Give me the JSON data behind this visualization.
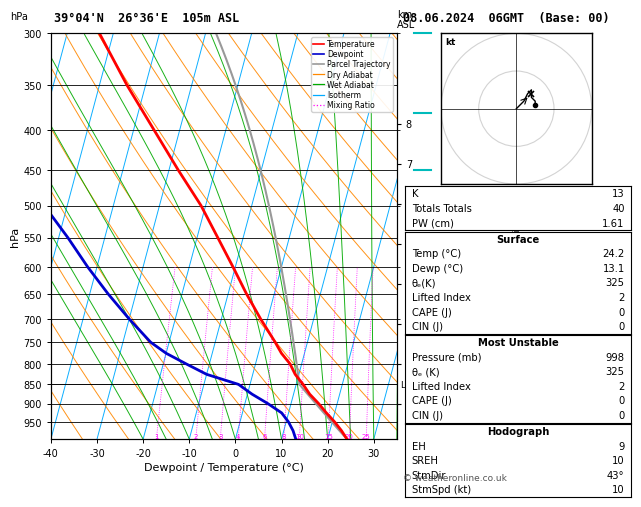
{
  "title_left": "39°04'N  26°36'E  105m ASL",
  "title_right": "08.06.2024  06GMT  (Base: 00)",
  "xlabel": "Dewpoint / Temperature (°C)",
  "ylabel_left": "hPa",
  "pressure_ticks": [
    300,
    350,
    400,
    450,
    500,
    550,
    600,
    650,
    700,
    750,
    800,
    850,
    900,
    950
  ],
  "xlim": [
    -40,
    35
  ],
  "temp_color": "#ff0000",
  "dewp_color": "#0000cc",
  "parcel_color": "#999999",
  "dry_adiabat_color": "#ff8800",
  "wet_adiabat_color": "#00aa00",
  "isotherm_color": "#00aaff",
  "mixing_ratio_color": "#ff00ff",
  "background_color": "#ffffff",
  "table_data": {
    "K": "13",
    "Totals Totals": "40",
    "PW (cm)": "1.61",
    "Surface_Temp": "24.2",
    "Surface_Dewp": "13.1",
    "Surface_theta_e": "325",
    "Surface_LI": "2",
    "Surface_CAPE": "0",
    "Surface_CIN": "0",
    "MU_Pressure": "998",
    "MU_theta_e": "325",
    "MU_LI": "2",
    "MU_CAPE": "0",
    "MU_CIN": "0",
    "EH": "9",
    "SREH": "10",
    "StmDir": "43°",
    "StmSpd": "10"
  },
  "mixing_ratio_labels": [
    1,
    2,
    3,
    4,
    6,
    8,
    10,
    15,
    20,
    25
  ],
  "km_ticks": [
    1,
    2,
    3,
    4,
    5,
    6,
    7,
    8
  ],
  "lcl_pressure": 850,
  "copyright": "© weatheronline.co.uk",
  "temp_p": [
    1000,
    975,
    950,
    925,
    900,
    875,
    850,
    825,
    800,
    775,
    750,
    700,
    650,
    600,
    550,
    500,
    450,
    400,
    350,
    300
  ],
  "temp_T": [
    24.2,
    22.5,
    20.5,
    18.2,
    16.0,
    13.5,
    11.5,
    9.2,
    7.5,
    5.0,
    3.0,
    -1.5,
    -6.0,
    -10.5,
    -15.5,
    -21.0,
    -28.0,
    -35.5,
    -44.0,
    -53.0
  ],
  "dewp_p": [
    1000,
    975,
    950,
    925,
    900,
    875,
    850,
    825,
    800,
    775,
    750,
    700,
    650,
    600,
    550,
    500,
    450,
    400,
    350,
    300
  ],
  "dewp_T": [
    13.1,
    12.0,
    10.5,
    8.5,
    5.0,
    1.0,
    -2.5,
    -10.0,
    -15.0,
    -20.0,
    -24.0,
    -30.0,
    -36.0,
    -42.0,
    -48.0,
    -55.0,
    -60.0,
    -62.0,
    -65.0,
    -68.0
  ],
  "SKEW": 45
}
